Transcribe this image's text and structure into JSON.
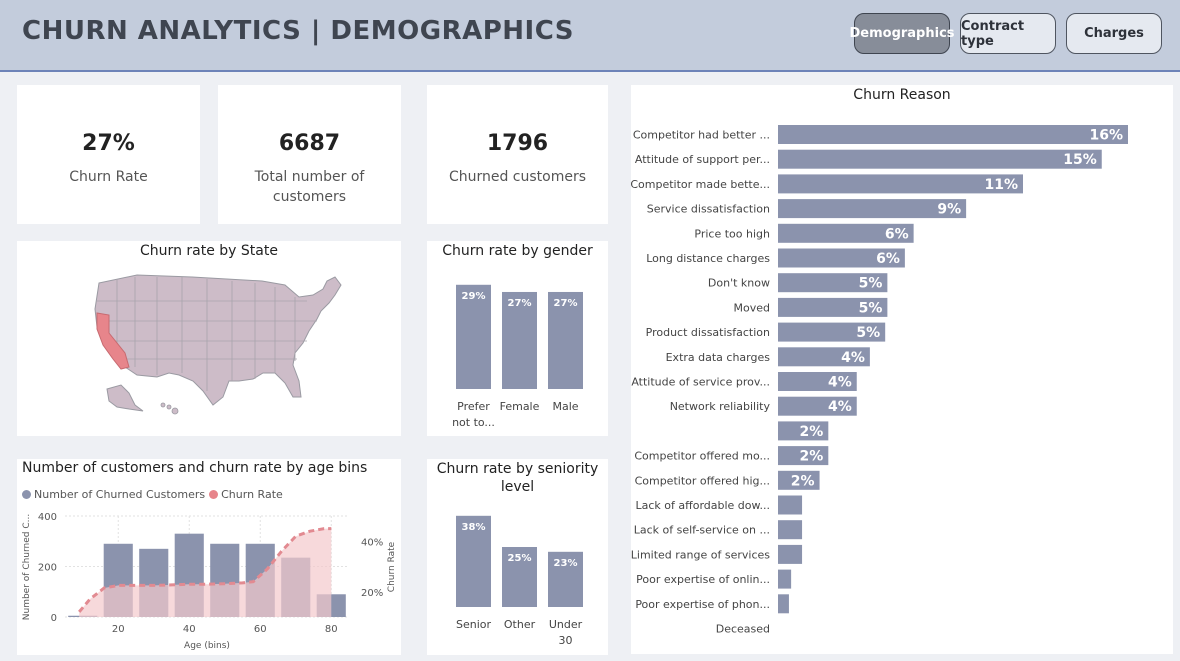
{
  "header": {
    "title": "CHURN ANALYTICS | DEMOGRAPHICS"
  },
  "nav": [
    {
      "label": "Demographics",
      "active": true
    },
    {
      "label": "Contract type",
      "active": false
    },
    {
      "label": "Charges",
      "active": false
    }
  ],
  "kpis": [
    {
      "value": "27%",
      "label": "Churn Rate"
    },
    {
      "value": "6687",
      "label": "Total number of customers"
    },
    {
      "value": "1796",
      "label": "Churned customers"
    }
  ],
  "colors": {
    "bar": "#8b93ad",
    "highlight": "#e7858b",
    "area": "#f3c9cc",
    "line": "#e28a91"
  },
  "map": {
    "title": "Churn rate by State",
    "highlighted_state": "California"
  },
  "chart_data": [
    {
      "id": "gender",
      "type": "bar",
      "title": "Churn rate by gender",
      "categories": [
        "Prefer not to...",
        "Female",
        "Male"
      ],
      "category_lines": [
        [
          "Prefer",
          "not to..."
        ],
        [
          "Female"
        ],
        [
          "Male"
        ]
      ],
      "values": [
        29,
        27,
        27
      ],
      "value_labels": [
        "29%",
        "27%",
        "27%"
      ],
      "ylim": [
        0,
        32
      ]
    },
    {
      "id": "seniority",
      "type": "bar",
      "title": "Churn rate by seniority level",
      "categories": [
        "Senior",
        "Other",
        "Under 30"
      ],
      "category_lines": [
        [
          "Senior"
        ],
        [
          "Other"
        ],
        [
          "Under",
          "30"
        ]
      ],
      "values": [
        38,
        25,
        23
      ],
      "value_labels": [
        "38%",
        "25%",
        "23%"
      ],
      "ylim": [
        0,
        40
      ]
    },
    {
      "id": "age",
      "type": "bar",
      "title": "Number of customers and churn rate by age bins",
      "legend": [
        "Number of Churned Customers",
        "Churn Rate"
      ],
      "xlabel": "Age (bins)",
      "ylabel": "Number of Churned C...",
      "y2label": "Churn Rate",
      "x_ticks": [
        20,
        40,
        60,
        80
      ],
      "y_ticks": [
        0,
        200,
        400
      ],
      "y2_ticks": [
        "20%",
        "40%"
      ],
      "xlim": [
        5,
        85
      ],
      "ylim": [
        0,
        400
      ],
      "y2lim": [
        0.1,
        0.5
      ],
      "bins": [
        10,
        20,
        30,
        40,
        50,
        60,
        70,
        80
      ],
      "series": [
        {
          "name": "Number of Churned Customers",
          "values": [
            5,
            290,
            270,
            330,
            290,
            290,
            235,
            90
          ]
        },
        {
          "name": "Churn Rate",
          "x": [
            9,
            12,
            16,
            20,
            25,
            30,
            35,
            40,
            45,
            50,
            55,
            58,
            62,
            66,
            70,
            74,
            78,
            80
          ],
          "values": [
            0.12,
            0.17,
            0.215,
            0.225,
            0.225,
            0.225,
            0.227,
            0.23,
            0.23,
            0.232,
            0.235,
            0.24,
            0.29,
            0.36,
            0.42,
            0.44,
            0.45,
            0.45
          ]
        }
      ]
    },
    {
      "id": "reason",
      "type": "bar",
      "orientation": "horizontal",
      "title": "Churn Reason",
      "categories": [
        "Competitor had better ...",
        "Attitude of support per...",
        "Competitor made bette...",
        "Service dissatisfaction",
        "Price too high",
        "Long distance charges",
        "Don't know",
        "Moved",
        "Product dissatisfaction",
        "Extra data charges",
        "Attitude of service prov...",
        "Network reliability",
        "",
        "Competitor offered mo...",
        "Competitor offered hig...",
        "Lack of affordable dow...",
        "Lack of self-service on ...",
        "Limited range of services",
        "Poor expertise of onlin...",
        "Poor expertise of phon...",
        "Deceased"
      ],
      "values": [
        16.0,
        14.8,
        11.2,
        8.6,
        6.2,
        5.8,
        5.0,
        5.0,
        4.9,
        4.2,
        3.6,
        3.6,
        2.3,
        2.3,
        1.9,
        1.1,
        1.1,
        1.1,
        0.6,
        0.5,
        0
      ],
      "value_labels": [
        "16%",
        "15%",
        "11%",
        "9%",
        "6%",
        "6%",
        "5%",
        "5%",
        "5%",
        "4%",
        "4%",
        "4%",
        "2%",
        "2%",
        "2%",
        "",
        "",
        "",
        "",
        "",
        ""
      ],
      "xlim": [
        0,
        16
      ]
    }
  ]
}
